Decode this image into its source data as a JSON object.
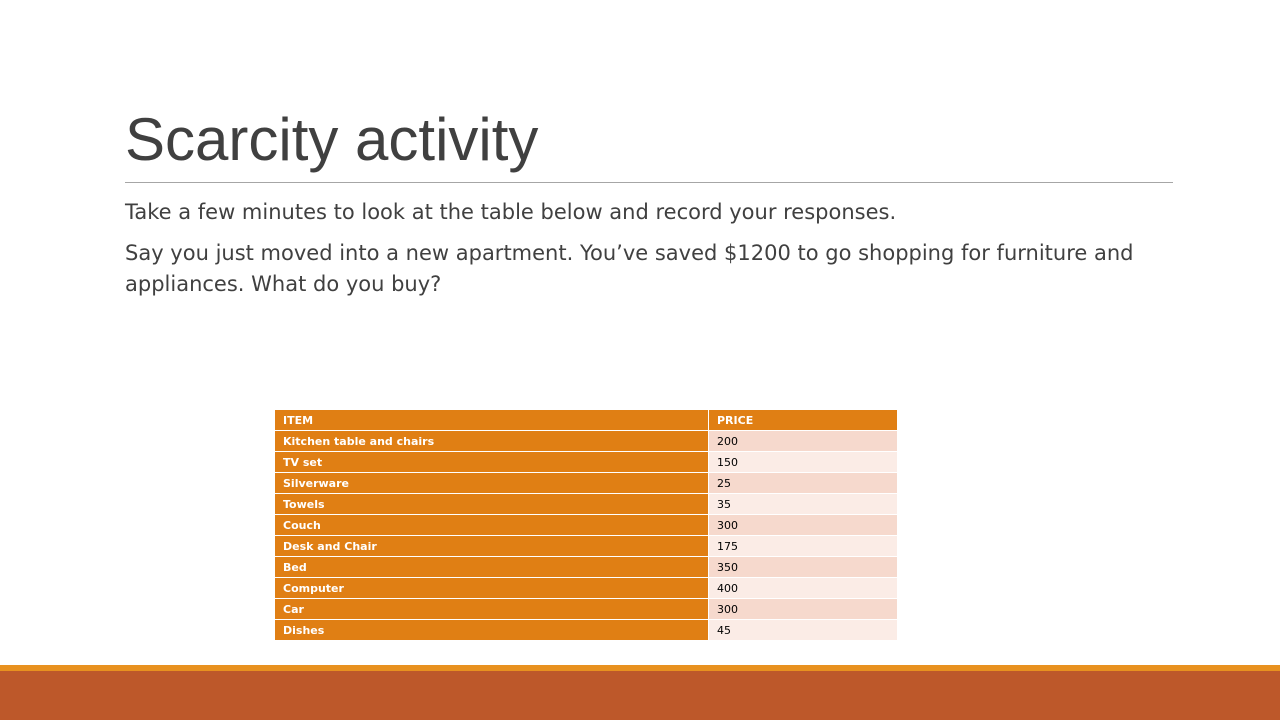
{
  "slide": {
    "title": "Scarcity activity",
    "paragraphs": [
      "Take a few minutes to look at the table below and record your responses.",
      "Say you just moved into a new apartment. You’ve saved $1200 to go shopping for furniture and appliances. What do you buy?"
    ]
  },
  "table": {
    "headers": [
      "ITEM",
      "PRICE"
    ],
    "rows": [
      {
        "item": "Kitchen table and chairs",
        "price": "200"
      },
      {
        "item": "TV set",
        "price": "150"
      },
      {
        "item": "Silverware",
        "price": "25"
      },
      {
        "item": "Towels",
        "price": "35"
      },
      {
        "item": "Couch",
        "price": "300"
      },
      {
        "item": "Desk and Chair",
        "price": "175"
      },
      {
        "item": "Bed",
        "price": "350"
      },
      {
        "item": "Computer",
        "price": "400"
      },
      {
        "item": "Car",
        "price": "300"
      },
      {
        "item": "Dishes",
        "price": "45"
      }
    ]
  },
  "colors": {
    "accent_orange": "#e07f14",
    "footer_band": "#bd582a",
    "footer_line": "#e8911f",
    "row_tint_dark": "#f6d9cd",
    "row_tint_light": "#fbece6",
    "title_text": "#404040"
  }
}
